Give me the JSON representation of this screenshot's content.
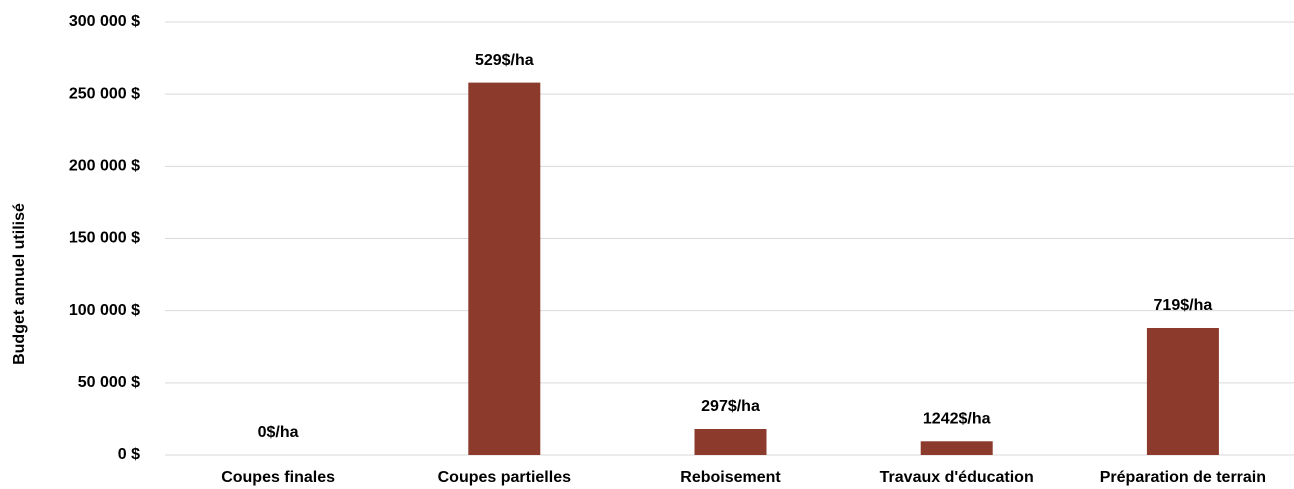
{
  "chart_data": {
    "type": "bar",
    "y_label": "Budget annuel utilisé",
    "categories": [
      "Coupes finales",
      "Coupes partielles",
      "Reboisement",
      "Travaux d'éducation",
      "Préparation de terrain"
    ],
    "values": [
      0,
      258000,
      18000,
      9500,
      88000
    ],
    "bar_annotations": [
      "0$/ha",
      "529$/ha",
      "297$/ha",
      "1242$/ha",
      "719$/ha"
    ],
    "color": "#8b3a2b",
    "ylim": [
      0,
      300000
    ],
    "yticks": [
      {
        "value": 0,
        "label": "0 $"
      },
      {
        "value": 50000,
        "label": "50 000 $"
      },
      {
        "value": 100000,
        "label": "100 000 $"
      },
      {
        "value": 150000,
        "label": "150 000 $"
      },
      {
        "value": 200000,
        "label": "200 000 $"
      },
      {
        "value": 250000,
        "label": "250 000 $"
      },
      {
        "value": 300000,
        "label": "300 000 $"
      }
    ],
    "grid": true
  }
}
